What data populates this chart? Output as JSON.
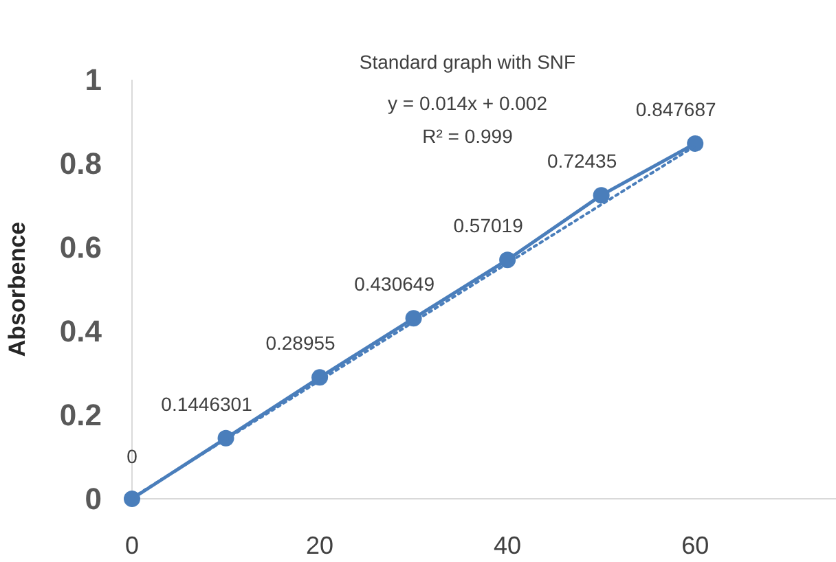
{
  "chart_data": {
    "type": "line",
    "title": "Standard graph with SNF",
    "ylabel": "Absorbence",
    "annotations": [
      "y = 0.014x + 0.002",
      "R² = 0.999"
    ],
    "x": [
      0,
      10,
      20,
      30,
      40,
      50,
      60
    ],
    "series": [
      {
        "color": "#4a7ebb",
        "values": [
          0,
          0.1446301,
          0.28955,
          0.430649,
          0.57019,
          0.72435,
          0.847687
        ],
        "value_labels": [
          "0",
          "0.1446301",
          "0.28955",
          "0.430649",
          "0.57019",
          "0.72435",
          "0.847687"
        ],
        "marker": "circle",
        "line_style": "solid"
      },
      {
        "color": "#4a7ebb",
        "x": [
          0,
          60
        ],
        "values": [
          0.002,
          0.842
        ],
        "marker": "none",
        "line_style": "dotted"
      }
    ],
    "xlim": [
      0,
      75
    ],
    "xticks": [
      0,
      20,
      40,
      60
    ],
    "ylim": [
      0,
      1
    ],
    "yticks": [
      0,
      0.2,
      0.4,
      0.6,
      0.8,
      1
    ],
    "grid": false
  }
}
